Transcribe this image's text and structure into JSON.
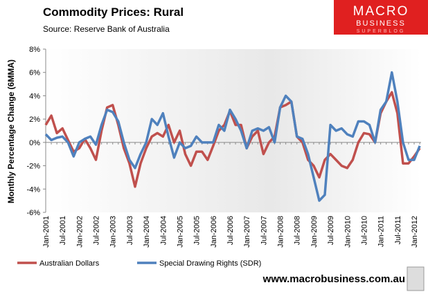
{
  "chart_data": {
    "type": "line",
    "title": "Commodity Prices: Rural",
    "subtitle": "Source: Reserve Bank of Australia",
    "y_label": "Monthly Percentage Change (6MMA)",
    "categories": [
      "Jan-2001",
      null,
      null,
      "Jul-2001",
      null,
      null,
      "Jan-2002",
      null,
      null,
      "Jul-2002",
      null,
      null,
      "Jan-2003",
      null,
      null,
      "Jul-2003",
      null,
      null,
      "Jan-2004",
      null,
      null,
      "Jul-2004",
      null,
      null,
      "Jan-2005",
      null,
      null,
      "Jul-2005",
      null,
      null,
      "Jan-2006",
      null,
      null,
      "Jul-2006",
      null,
      null,
      "Jan-2007",
      null,
      null,
      "Jul-2007",
      null,
      null,
      "Jan-2008",
      null,
      null,
      "Jul-2008",
      null,
      null,
      "Jan-2009",
      null,
      null,
      "Jul-2009",
      null,
      null,
      "Jan-2010",
      null,
      null,
      "Jul-2010",
      null,
      null,
      "Jan-2011",
      null,
      null,
      "Jul-2011",
      null,
      null,
      "Jan-2012",
      null
    ],
    "series": [
      {
        "name": "Australian Dollars",
        "color": "#c0504d",
        "values": [
          1.5,
          2.3,
          0.8,
          1.2,
          0.2,
          -0.8,
          -0.5,
          0.3,
          -0.5,
          -1.5,
          1.0,
          3.0,
          3.2,
          1.5,
          -0.5,
          -1.8,
          -3.8,
          -1.8,
          -0.5,
          0.5,
          0.8,
          0.5,
          1.5,
          0.0,
          1.0,
          -1.0,
          -2.0,
          -0.8,
          -0.8,
          -1.5,
          -0.3,
          1.0,
          1.5,
          2.7,
          1.5,
          1.5,
          -0.5,
          0.5,
          1.0,
          -1.0,
          0.0,
          0.5,
          3.0,
          3.2,
          3.5,
          0.5,
          0.0,
          -1.5,
          -2.0,
          -3.0,
          -1.5,
          -1.0,
          -1.5,
          -2.0,
          -2.2,
          -1.5,
          0.0,
          0.8,
          0.7,
          0.0,
          2.5,
          3.5,
          4.3,
          2.5,
          -1.8,
          -1.8,
          -1.2,
          -0.5
        ]
      },
      {
        "name": "Special Drawing Rights (SDR)",
        "color": "#4f81bd",
        "values": [
          0.7,
          0.2,
          0.4,
          0.5,
          0.0,
          -1.2,
          0.0,
          0.3,
          0.5,
          -0.2,
          1.5,
          2.8,
          2.6,
          1.8,
          0.0,
          -1.5,
          -2.2,
          -1.0,
          0.0,
          2.0,
          1.5,
          2.5,
          0.5,
          -1.3,
          0.0,
          -0.5,
          -0.3,
          0.5,
          0.0,
          0.0,
          0.0,
          1.5,
          1.0,
          2.8,
          2.0,
          1.0,
          -0.5,
          1.0,
          1.2,
          1.0,
          1.3,
          0.0,
          3.0,
          4.0,
          3.5,
          0.5,
          0.3,
          -1.0,
          -3.0,
          -5.0,
          -4.5,
          1.5,
          1.0,
          1.2,
          0.7,
          0.5,
          1.8,
          1.8,
          1.5,
          0.0,
          2.8,
          3.5,
          6.0,
          3.5,
          0.0,
          -1.5,
          -1.5,
          -0.3
        ]
      }
    ],
    "ylim": [
      -6,
      8
    ],
    "yticks": [
      {
        "value": -6,
        "label": "-6%"
      },
      {
        "value": -4,
        "label": "-4%"
      },
      {
        "value": -2,
        "label": "-2%"
      },
      {
        "value": 0,
        "label": "0%"
      },
      {
        "value": 2,
        "label": "2%"
      },
      {
        "value": 4,
        "label": "4%"
      },
      {
        "value": 6,
        "label": "6%"
      },
      {
        "value": 8,
        "label": "8%"
      }
    ],
    "grid": false
  },
  "branding": {
    "logo_top": "MACRO",
    "logo_middle": "BUSINESS",
    "logo_bottom": "SUPERBLOG",
    "website": "www.macrobusiness.com.au"
  }
}
